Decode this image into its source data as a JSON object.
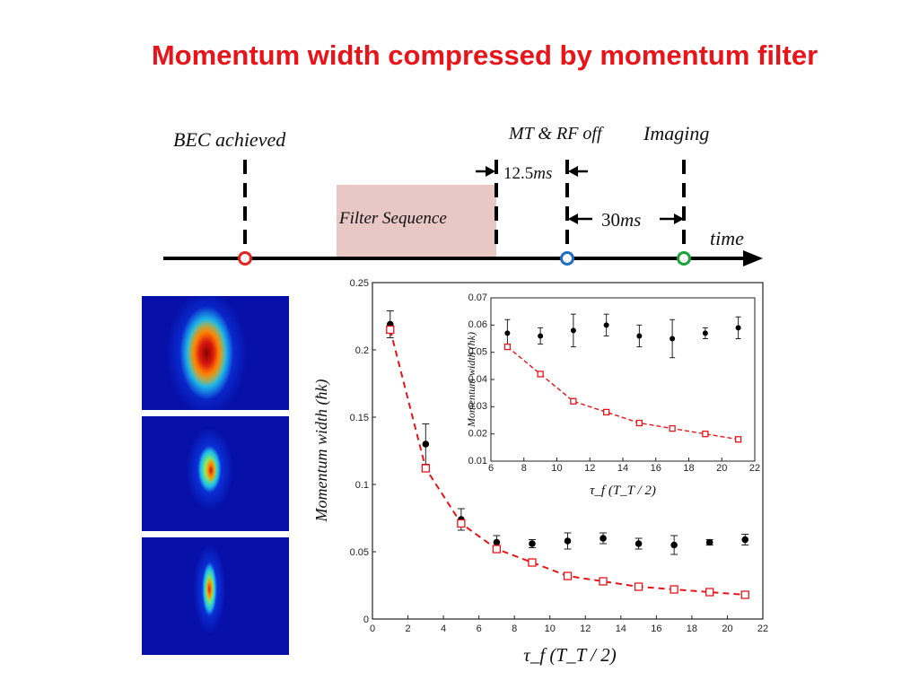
{
  "title": "Momentum width compressed by momentum filter",
  "timeline": {
    "bec_label": "BEC achieved",
    "filter_label": "Filter Sequence",
    "off_label": "MT & RF off",
    "imaging_label": "Imaging",
    "time_label": "time",
    "delay1_value": "12.5",
    "delay1_unit": "ms",
    "delay2_value": "30",
    "delay2_unit": "ms",
    "colors": {
      "filter_box": "#e8c7c5",
      "bec_marker": "#e0261f",
      "off_marker": "#1d6fc4",
      "imaging_marker": "#1aa33a"
    }
  },
  "chart_data": [
    {
      "type": "scatter",
      "xlabel": "τ_f (T_T / 2)",
      "ylabel": "Momentum width (ħk)",
      "xlim": [
        0,
        22
      ],
      "ylim": [
        0,
        0.25
      ],
      "x_ticks": [
        "0",
        "2",
        "4",
        "6",
        "8",
        "10",
        "12",
        "14",
        "16",
        "18",
        "20",
        "22"
      ],
      "y_ticks": [
        "0",
        "0.05",
        "0.1",
        "0.15",
        "0.2",
        "0.25"
      ],
      "series": [
        {
          "marker": "filled-circle-errorbar",
          "color": "#000000",
          "x": [
            1,
            3,
            5,
            7,
            9,
            11,
            13,
            15,
            17,
            19,
            21
          ],
          "y": [
            0.219,
            0.13,
            0.074,
            0.057,
            0.056,
            0.058,
            0.06,
            0.056,
            0.055,
            0.057,
            0.059
          ],
          "err": [
            0.01,
            0.015,
            0.008,
            0.005,
            0.003,
            0.006,
            0.004,
            0.004,
            0.007,
            0.002,
            0.004
          ]
        },
        {
          "marker": "open-square-dashed-line",
          "color": "#e8141a",
          "x": [
            1,
            3,
            5,
            7,
            9,
            11,
            13,
            15,
            17,
            19,
            21
          ],
          "y": [
            0.215,
            0.112,
            0.071,
            0.052,
            0.042,
            0.032,
            0.028,
            0.024,
            0.022,
            0.02,
            0.018
          ]
        }
      ]
    },
    {
      "type": "scatter",
      "xlabel": "τ_f (T_T / 2)",
      "ylabel": "Momentum width (ħk)",
      "xlim": [
        6,
        22
      ],
      "ylim": [
        0.01,
        0.07
      ],
      "x_ticks": [
        "6",
        "8",
        "10",
        "12",
        "14",
        "16",
        "18",
        "20",
        "22"
      ],
      "y_ticks": [
        "0.01",
        "0.02",
        "0.03",
        "0.04",
        "0.05",
        "0.06",
        "0.07"
      ],
      "series": [
        {
          "marker": "filled-circle-errorbar",
          "color": "#000000",
          "x": [
            7,
            9,
            11,
            13,
            15,
            17,
            19,
            21
          ],
          "y": [
            0.057,
            0.056,
            0.058,
            0.06,
            0.056,
            0.055,
            0.057,
            0.059
          ],
          "err": [
            0.005,
            0.003,
            0.006,
            0.004,
            0.004,
            0.007,
            0.002,
            0.004
          ]
        },
        {
          "marker": "open-square-dashed-line",
          "color": "#e8141a",
          "x": [
            7,
            9,
            11,
            13,
            15,
            17,
            19,
            21
          ],
          "y": [
            0.052,
            0.042,
            0.032,
            0.028,
            0.024,
            0.022,
            0.02,
            0.018
          ]
        }
      ]
    }
  ]
}
